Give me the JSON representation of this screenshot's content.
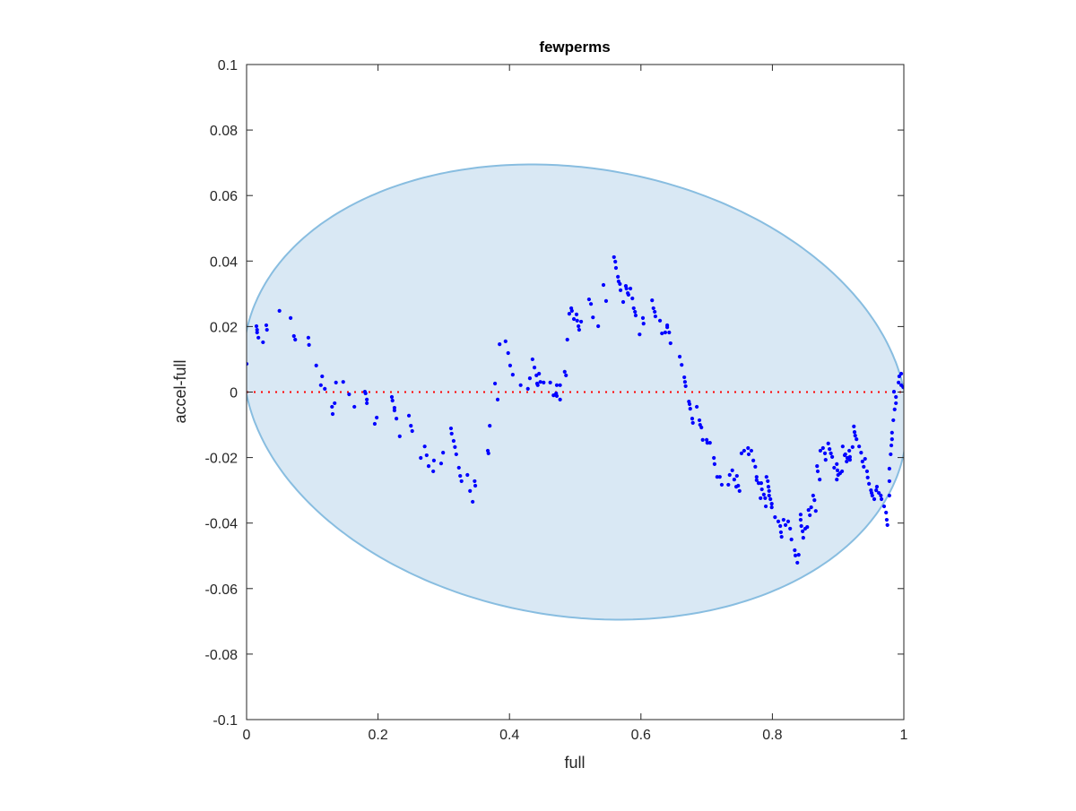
{
  "chart_data": {
    "type": "scatter",
    "title": "fewperms",
    "xlabel": "full",
    "ylabel": "accel-full",
    "xlim": [
      0,
      1
    ],
    "ylim": [
      -0.1,
      0.1
    ],
    "xticks": [
      0,
      0.2,
      0.4,
      0.6,
      0.8,
      1
    ],
    "xtick_labels": [
      "0",
      "0.2",
      "0.4",
      "0.6",
      "0.8",
      "1"
    ],
    "yticks": [
      -0.1,
      -0.08,
      -0.06,
      -0.04,
      -0.02,
      0,
      0.02,
      0.04,
      0.06,
      0.08,
      0.1
    ],
    "ytick_labels": [
      "-0.1",
      "-0.08",
      "-0.06",
      "-0.04",
      "-0.02",
      "0",
      "0.02",
      "0.04",
      "0.06",
      "0.08",
      "0.1"
    ],
    "grid": false,
    "reference_line": {
      "y": 0,
      "style": "dotted",
      "color": "#ff0000"
    },
    "ellipse": {
      "cx": 0.5,
      "cy": 0,
      "semi_x": 0.505,
      "semi_y": 0.0689,
      "shear_y": -0.0091,
      "fill": "#d9e8f4",
      "edge": "#88bde0"
    },
    "point_color": "#0000ff",
    "points": [
      [
        0,
        0.0086
      ],
      [
        0.015,
        0.0201
      ],
      [
        0.016,
        0.019
      ],
      [
        0.016,
        0.0182
      ],
      [
        0.018,
        0.0166
      ],
      [
        0.025,
        0.0152
      ],
      [
        0.03,
        0.0204
      ],
      [
        0.031,
        0.019
      ],
      [
        0.05,
        0.0248
      ],
      [
        0.067,
        0.0226
      ],
      [
        0.072,
        0.0171
      ],
      [
        0.074,
        0.016
      ],
      [
        0.094,
        0.0166
      ],
      [
        0.095,
        0.0144
      ],
      [
        0.106,
        0.0081
      ],
      [
        0.115,
        0.0048
      ],
      [
        0.113,
        0.0021
      ],
      [
        0.119,
        0.001
      ],
      [
        0.136,
        0.0029
      ],
      [
        0.147,
        0.0031
      ],
      [
        0.156,
        -0.0007
      ],
      [
        0.13,
        -0.0045
      ],
      [
        0.134,
        -0.0034
      ],
      [
        0.131,
        -0.0067
      ],
      [
        0.164,
        -0.0045
      ],
      [
        0.18,
        0.0001
      ],
      [
        0.181,
        -0.0004
      ],
      [
        0.183,
        -0.0023
      ],
      [
        0.183,
        -0.0034
      ],
      [
        0.195,
        -0.0097
      ],
      [
        0.198,
        -0.0078
      ],
      [
        0.221,
        -0.0015
      ],
      [
        0.222,
        -0.0026
      ],
      [
        0.225,
        -0.0048
      ],
      [
        0.225,
        -0.0056
      ],
      [
        0.228,
        -0.0081
      ],
      [
        0.233,
        -0.0135
      ],
      [
        0.247,
        -0.0072
      ],
      [
        0.25,
        -0.0103
      ],
      [
        0.252,
        -0.0119
      ],
      [
        0.271,
        -0.0166
      ],
      [
        0.265,
        -0.0201
      ],
      [
        0.274,
        -0.0193
      ],
      [
        0.277,
        -0.0226
      ],
      [
        0.285,
        -0.0209
      ],
      [
        0.284,
        -0.0242
      ],
      [
        0.299,
        -0.0185
      ],
      [
        0.296,
        -0.0218
      ],
      [
        0.311,
        -0.0111
      ],
      [
        0.312,
        -0.0127
      ],
      [
        0.315,
        -0.0149
      ],
      [
        0.317,
        -0.0168
      ],
      [
        0.319,
        -0.019
      ],
      [
        0.323,
        -0.0231
      ],
      [
        0.325,
        -0.0256
      ],
      [
        0.327,
        -0.0272
      ],
      [
        0.336,
        -0.0253
      ],
      [
        0.347,
        -0.0272
      ],
      [
        0.348,
        -0.0286
      ],
      [
        0.34,
        -0.0302
      ],
      [
        0.344,
        -0.0335
      ],
      [
        0.367,
        -0.0179
      ],
      [
        0.368,
        -0.0187
      ],
      [
        0.37,
        -0.0103
      ],
      [
        0.378,
        0.0026
      ],
      [
        0.382,
        -0.0023
      ],
      [
        0.385,
        0.0146
      ],
      [
        0.394,
        0.0155
      ],
      [
        0.398,
        0.0119
      ],
      [
        0.401,
        0.0081
      ],
      [
        0.405,
        0.0053
      ],
      [
        0.417,
        0.0021
      ],
      [
        0.428,
        0.001
      ],
      [
        0.431,
        0.0042
      ],
      [
        0.435,
        0.01
      ],
      [
        0.438,
        0.0075
      ],
      [
        0.441,
        0.0051
      ],
      [
        0.445,
        0.0056
      ],
      [
        0.442,
        0.0026
      ],
      [
        0.443,
        0.0021
      ],
      [
        0.447,
        0.0031
      ],
      [
        0.452,
        0.0029
      ],
      [
        0.462,
        0.0029
      ],
      [
        0.467,
        -0.001
      ],
      [
        0.471,
        -0.0004
      ],
      [
        0.472,
        -0.0012
      ],
      [
        0.477,
        -0.0023
      ],
      [
        0.472,
        0.0021
      ],
      [
        0.477,
        0.0021
      ],
      [
        0.484,
        0.0062
      ],
      [
        0.486,
        0.0051
      ],
      [
        0.488,
        0.016
      ],
      [
        0.491,
        0.0239
      ],
      [
        0.494,
        0.0256
      ],
      [
        0.495,
        0.0248
      ],
      [
        0.498,
        0.0223
      ],
      [
        0.502,
        0.0237
      ],
      [
        0.503,
        0.0218
      ],
      [
        0.509,
        0.0215
      ],
      [
        0.505,
        0.0201
      ],
      [
        0.506,
        0.019
      ],
      [
        0.521,
        0.0283
      ],
      [
        0.524,
        0.0269
      ],
      [
        0.527,
        0.0228
      ],
      [
        0.535,
        0.0201
      ],
      [
        0.543,
        0.0327
      ],
      [
        0.547,
        0.0278
      ],
      [
        0.559,
        0.0412
      ],
      [
        0.561,
        0.0398
      ],
      [
        0.562,
        0.0379
      ],
      [
        0.565,
        0.0352
      ],
      [
        0.566,
        0.0338
      ],
      [
        0.568,
        0.033
      ],
      [
        0.569,
        0.0311
      ],
      [
        0.573,
        0.0275
      ],
      [
        0.577,
        0.0324
      ],
      [
        0.578,
        0.0316
      ],
      [
        0.58,
        0.0302
      ],
      [
        0.581,
        0.0297
      ],
      [
        0.584,
        0.0316
      ],
      [
        0.587,
        0.0286
      ],
      [
        0.589,
        0.0256
      ],
      [
        0.591,
        0.0245
      ],
      [
        0.592,
        0.0234
      ],
      [
        0.598,
        0.0176
      ],
      [
        0.603,
        0.0226
      ],
      [
        0.604,
        0.0209
      ],
      [
        0.617,
        0.028
      ],
      [
        0.619,
        0.0256
      ],
      [
        0.621,
        0.0245
      ],
      [
        0.622,
        0.0231
      ],
      [
        0.629,
        0.0218
      ],
      [
        0.632,
        0.0179
      ],
      [
        0.637,
        0.0182
      ],
      [
        0.64,
        0.0204
      ],
      [
        0.64,
        0.0198
      ],
      [
        0.643,
        0.0182
      ],
      [
        0.645,
        0.0149
      ],
      [
        0.659,
        0.0108
      ],
      [
        0.662,
        0.0083
      ],
      [
        0.666,
        0.0045
      ],
      [
        0.667,
        0.0031
      ],
      [
        0.668,
        0.0018
      ],
      [
        0.673,
        -0.0029
      ],
      [
        0.674,
        -0.0037
      ],
      [
        0.675,
        -0.0051
      ],
      [
        0.685,
        -0.0045
      ],
      [
        0.678,
        -0.0081
      ],
      [
        0.689,
        -0.0086
      ],
      [
        0.679,
        -0.0094
      ],
      [
        0.69,
        -0.01
      ],
      [
        0.692,
        -0.0108
      ],
      [
        0.694,
        -0.0146
      ],
      [
        0.7,
        -0.0146
      ],
      [
        0.701,
        -0.0155
      ],
      [
        0.705,
        -0.0155
      ],
      [
        0.711,
        -0.0201
      ],
      [
        0.712,
        -0.022
      ],
      [
        0.716,
        -0.0259
      ],
      [
        0.72,
        -0.0259
      ],
      [
        0.723,
        -0.0283
      ],
      [
        0.733,
        -0.0283
      ],
      [
        0.735,
        -0.0253
      ],
      [
        0.739,
        -0.0239
      ],
      [
        0.742,
        -0.0267
      ],
      [
        0.746,
        -0.0256
      ],
      [
        0.745,
        -0.0289
      ],
      [
        0.748,
        -0.0286
      ],
      [
        0.75,
        -0.0302
      ],
      [
        0.753,
        -0.0187
      ],
      [
        0.757,
        -0.0179
      ],
      [
        0.763,
        -0.0171
      ],
      [
        0.764,
        -0.019
      ],
      [
        0.768,
        -0.0179
      ],
      [
        0.771,
        -0.0209
      ],
      [
        0.774,
        -0.0228
      ],
      [
        0.776,
        -0.0259
      ],
      [
        0.776,
        -0.0269
      ],
      [
        0.779,
        -0.0278
      ],
      [
        0.783,
        -0.0278
      ],
      [
        0.784,
        -0.0297
      ],
      [
        0.787,
        -0.0313
      ],
      [
        0.782,
        -0.0324
      ],
      [
        0.789,
        -0.0324
      ],
      [
        0.79,
        -0.0349
      ],
      [
        0.791,
        -0.0259
      ],
      [
        0.793,
        -0.0272
      ],
      [
        0.794,
        -0.0289
      ],
      [
        0.795,
        -0.0302
      ],
      [
        0.795,
        -0.0316
      ],
      [
        0.797,
        -0.0327
      ],
      [
        0.799,
        -0.0341
      ],
      [
        0.799,
        -0.0352
      ],
      [
        0.804,
        -0.0382
      ],
      [
        0.809,
        -0.0395
      ],
      [
        0.812,
        -0.0409
      ],
      [
        0.813,
        -0.0428
      ],
      [
        0.814,
        -0.0442
      ],
      [
        0.817,
        -0.039
      ],
      [
        0.82,
        -0.0406
      ],
      [
        0.824,
        -0.0395
      ],
      [
        0.827,
        -0.0417
      ],
      [
        0.829,
        -0.045
      ],
      [
        0.834,
        -0.0483
      ],
      [
        0.835,
        -0.0499
      ],
      [
        0.838,
        -0.0521
      ],
      [
        0.84,
        -0.0497
      ],
      [
        0.843,
        -0.0374
      ],
      [
        0.843,
        -0.039
      ],
      [
        0.844,
        -0.0409
      ],
      [
        0.846,
        -0.0425
      ],
      [
        0.847,
        -0.0445
      ],
      [
        0.85,
        -0.0417
      ],
      [
        0.853,
        -0.0412
      ],
      [
        0.855,
        -0.036
      ],
      [
        0.857,
        -0.0376
      ],
      [
        0.859,
        -0.0352
      ],
      [
        0.862,
        -0.0316
      ],
      [
        0.864,
        -0.033
      ],
      [
        0.866,
        -0.0363
      ],
      [
        0.868,
        -0.0226
      ],
      [
        0.869,
        -0.0242
      ],
      [
        0.872,
        -0.0267
      ],
      [
        0.873,
        -0.0179
      ],
      [
        0.877,
        -0.0171
      ],
      [
        0.88,
        -0.0187
      ],
      [
        0.881,
        -0.0207
      ],
      [
        0.885,
        -0.0157
      ],
      [
        0.887,
        -0.0174
      ],
      [
        0.889,
        -0.0187
      ],
      [
        0.891,
        -0.0198
      ],
      [
        0.894,
        -0.0231
      ],
      [
        0.898,
        -0.022
      ],
      [
        0.899,
        -0.0239
      ],
      [
        0.9,
        -0.0253
      ],
      [
        0.898,
        -0.0267
      ],
      [
        0.903,
        -0.0248
      ],
      [
        0.906,
        -0.0242
      ],
      [
        0.907,
        -0.0166
      ],
      [
        0.91,
        -0.0193
      ],
      [
        0.911,
        -0.019
      ],
      [
        0.913,
        -0.0212
      ],
      [
        0.914,
        -0.0201
      ],
      [
        0.917,
        -0.0179
      ],
      [
        0.918,
        -0.0198
      ],
      [
        0.918,
        -0.0207
      ],
      [
        0.922,
        -0.0168
      ],
      [
        0.924,
        -0.0105
      ],
      [
        0.925,
        -0.0122
      ],
      [
        0.926,
        -0.0133
      ],
      [
        0.928,
        -0.0144
      ],
      [
        0.932,
        -0.0166
      ],
      [
        0.935,
        -0.0185
      ],
      [
        0.937,
        -0.0212
      ],
      [
        0.939,
        -0.0228
      ],
      [
        0.941,
        -0.0204
      ],
      [
        0.944,
        -0.0242
      ],
      [
        0.945,
        -0.0261
      ],
      [
        0.947,
        -0.028
      ],
      [
        0.95,
        -0.03
      ],
      [
        0.951,
        -0.0308
      ],
      [
        0.952,
        -0.0316
      ],
      [
        0.955,
        -0.0327
      ],
      [
        0.958,
        -0.03
      ],
      [
        0.959,
        -0.0289
      ],
      [
        0.962,
        -0.0308
      ],
      [
        0.965,
        -0.0316
      ],
      [
        0.966,
        -0.0327
      ],
      [
        0.97,
        -0.0349
      ],
      [
        0.973,
        -0.0368
      ],
      [
        0.974,
        -0.039
      ],
      [
        0.975,
        -0.0406
      ],
      [
        0.978,
        -0.0316
      ],
      [
        0.978,
        -0.0272
      ],
      [
        0.978,
        -0.0234
      ],
      [
        0.98,
        -0.019
      ],
      [
        0.981,
        -0.0163
      ],
      [
        0.982,
        -0.0144
      ],
      [
        0.982,
        -0.0124
      ],
      [
        0.984,
        -0.0086
      ],
      [
        0.986,
        -0.0053
      ],
      [
        0.988,
        -0.0034
      ],
      [
        0.988,
        -0.0015
      ],
      [
        0.985,
        0.0001
      ],
      [
        0.992,
        0.0029
      ],
      [
        0.993,
        0.0048
      ],
      [
        0.996,
        0.0021
      ],
      [
        0.999,
        0.0015
      ],
      [
        0.996,
        0.0056
      ]
    ]
  }
}
